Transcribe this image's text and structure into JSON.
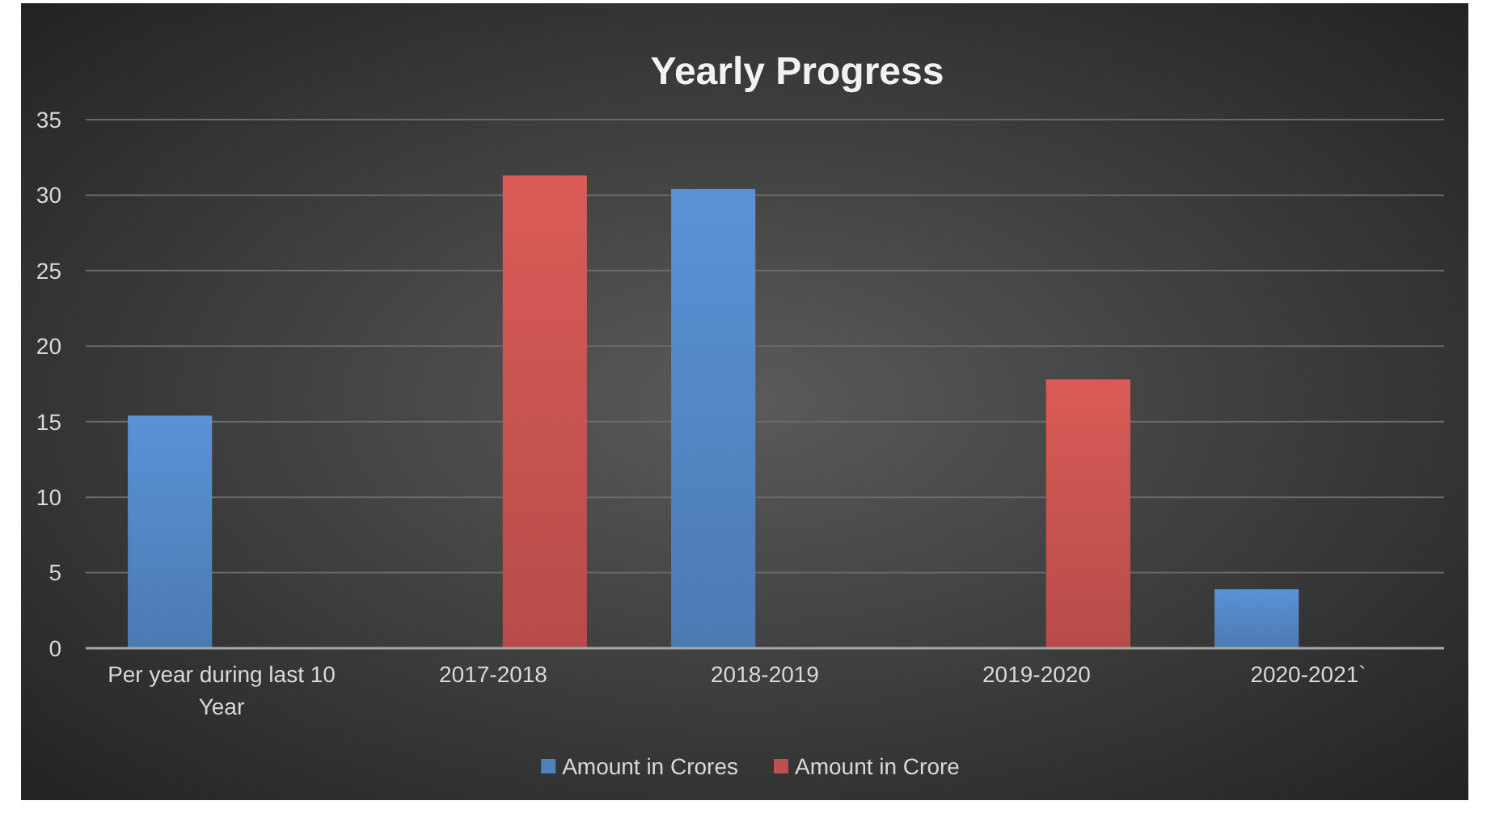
{
  "chart_data": {
    "type": "bar",
    "title": "Yearly Progress",
    "categories": [
      "Per year during last 10 Year",
      "2017-2018",
      "2018-2019",
      "2019-2020",
      "2020-2021`"
    ],
    "series": [
      {
        "name": "Amount in Crores",
        "color": "#4f81bd",
        "values": [
          15.4,
          null,
          30.4,
          null,
          3.9
        ]
      },
      {
        "name": "Amount in Crore",
        "color": "#c0504d",
        "values": [
          null,
          31.3,
          null,
          17.8,
          null
        ]
      }
    ],
    "ylim": [
      0,
      35
    ],
    "yticks": [
      0,
      5,
      10,
      15,
      20,
      25,
      30,
      35
    ],
    "grid": "y",
    "legend": "bottom"
  }
}
